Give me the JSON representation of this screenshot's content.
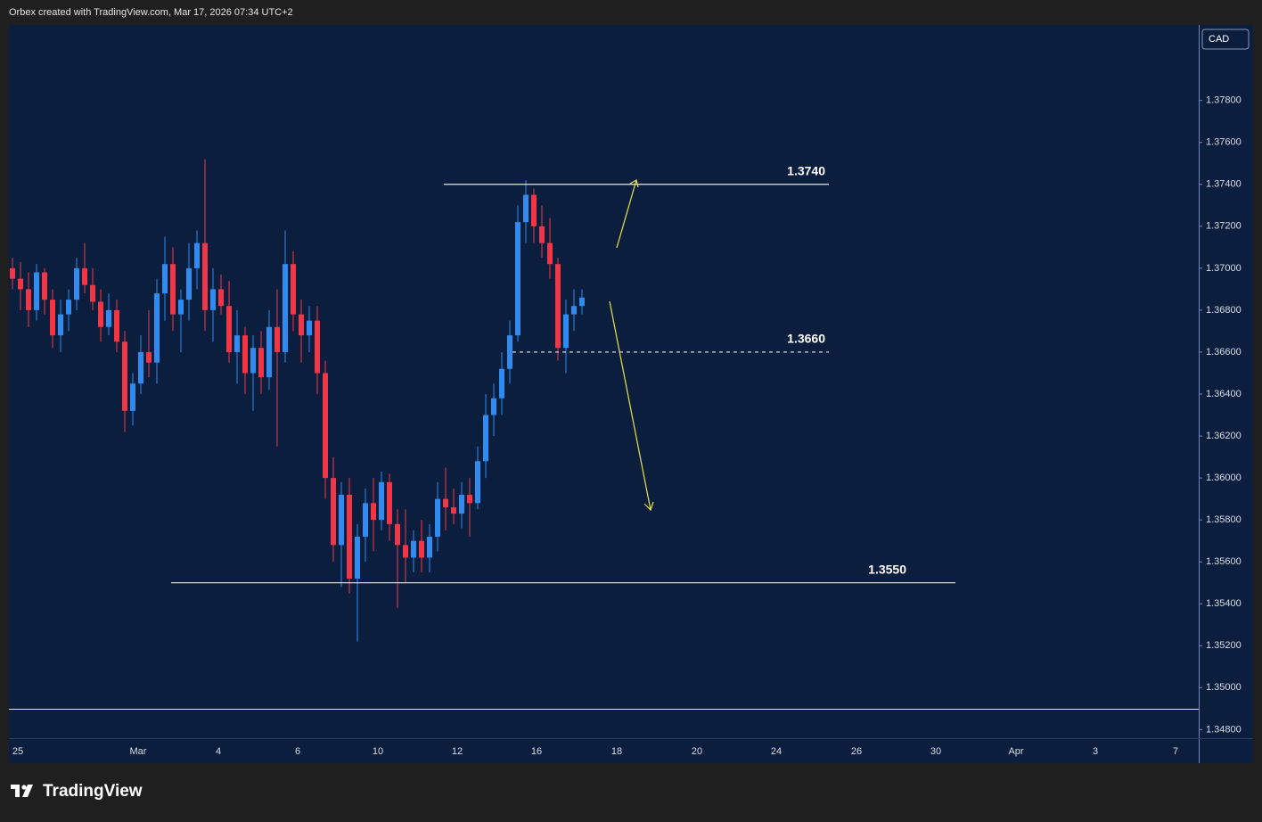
{
  "header": "Orbex created with TradingView.com, Mar 17, 2026 07:34 UTC+2",
  "logo": "TradingView",
  "chart_data": {
    "type": "candlestick",
    "currency": "CAD",
    "up_color": "#2f8bf0",
    "down_color": "#f23645",
    "ylim": [
      1.3464,
      1.3816
    ],
    "yticks": [
      {
        "value": 1.378,
        "label": "1.37800"
      },
      {
        "value": 1.376,
        "label": "1.37600"
      },
      {
        "value": 1.374,
        "label": "1.37400"
      },
      {
        "value": 1.372,
        "label": "1.37200"
      },
      {
        "value": 1.37,
        "label": "1.37000"
      },
      {
        "value": 1.368,
        "label": "1.36800"
      },
      {
        "value": 1.366,
        "label": "1.36600"
      },
      {
        "value": 1.364,
        "label": "1.36400"
      },
      {
        "value": 1.362,
        "label": "1.36200"
      },
      {
        "value": 1.36,
        "label": "1.36000"
      },
      {
        "value": 1.358,
        "label": "1.35800"
      },
      {
        "value": 1.356,
        "label": "1.35600"
      },
      {
        "value": 1.354,
        "label": "1.35400"
      },
      {
        "value": 1.352,
        "label": "1.35200"
      },
      {
        "value": 1.35,
        "label": "1.35000"
      },
      {
        "value": 1.348,
        "label": "1.34800"
      }
    ],
    "x_tick_labels": [
      "25",
      "Mar",
      "4",
      "6",
      "10",
      "12",
      "16",
      "18",
      "20",
      "24",
      "26",
      "30",
      "Apr",
      "3",
      "7"
    ],
    "open": [
      1.37,
      1.3695,
      1.369,
      1.368,
      1.3698,
      1.3685,
      1.3668,
      1.3678,
      1.3685,
      1.37,
      1.3692,
      1.3684,
      1.3672,
      1.368,
      1.3665,
      1.3632,
      1.3645,
      1.366,
      1.3655,
      1.3688,
      1.3702,
      1.3678,
      1.3685,
      1.37,
      1.3712,
      1.368,
      1.369,
      1.3682,
      1.366,
      1.3668,
      1.365,
      1.3662,
      1.3648,
      1.3672,
      1.366,
      1.3702,
      1.3678,
      1.3668,
      1.3675,
      1.365,
      1.36,
      1.3568,
      1.3592,
      1.3552,
      1.3572,
      1.3588,
      1.358,
      1.3598,
      1.3578,
      1.3568,
      1.3562,
      1.357,
      1.3562,
      1.3572,
      1.359,
      1.3586,
      1.3583,
      1.3592,
      1.3588,
      1.3608,
      1.363,
      1.3638,
      1.3652,
      1.3668,
      1.3722,
      1.3735,
      1.372,
      1.3712,
      1.3702,
      1.3662,
      1.3678,
      1.3682
    ],
    "high": [
      1.3705,
      1.3703,
      1.3698,
      1.3702,
      1.37,
      1.369,
      1.3685,
      1.369,
      1.3705,
      1.3712,
      1.37,
      1.369,
      1.3688,
      1.3685,
      1.367,
      1.365,
      1.3668,
      1.368,
      1.3695,
      1.3715,
      1.371,
      1.369,
      1.3712,
      1.3718,
      1.3752,
      1.37,
      1.3697,
      1.3694,
      1.368,
      1.3672,
      1.3668,
      1.367,
      1.368,
      1.369,
      1.3718,
      1.3708,
      1.3685,
      1.3682,
      1.3682,
      1.3656,
      1.361,
      1.3598,
      1.36,
      1.3578,
      1.3595,
      1.36,
      1.3603,
      1.3602,
      1.3585,
      1.3585,
      1.3575,
      1.358,
      1.3578,
      1.3598,
      1.3605,
      1.3595,
      1.3598,
      1.36,
      1.3615,
      1.364,
      1.3645,
      1.366,
      1.3675,
      1.373,
      1.3742,
      1.3738,
      1.373,
      1.3724,
      1.3705,
      1.3685,
      1.369,
      1.369
    ],
    "low": [
      1.369,
      1.368,
      1.3672,
      1.3675,
      1.3678,
      1.3662,
      1.366,
      1.367,
      1.368,
      1.3688,
      1.368,
      1.3665,
      1.3668,
      1.366,
      1.3622,
      1.3625,
      1.364,
      1.3648,
      1.3645,
      1.3675,
      1.367,
      1.366,
      1.3675,
      1.369,
      1.367,
      1.3665,
      1.3678,
      1.3655,
      1.3645,
      1.364,
      1.3632,
      1.364,
      1.3642,
      1.3615,
      1.3655,
      1.367,
      1.3655,
      1.366,
      1.364,
      1.359,
      1.356,
      1.3548,
      1.3545,
      1.3522,
      1.356,
      1.3565,
      1.3575,
      1.357,
      1.3538,
      1.355,
      1.3555,
      1.3555,
      1.3555,
      1.3565,
      1.3575,
      1.3578,
      1.3576,
      1.3572,
      1.3585,
      1.36,
      1.362,
      1.363,
      1.3645,
      1.3665,
      1.3712,
      1.3712,
      1.3705,
      1.3695,
      1.3656,
      1.365,
      1.367,
      1.3678
    ],
    "close": [
      1.3695,
      1.369,
      1.368,
      1.3698,
      1.3685,
      1.3668,
      1.3678,
      1.3685,
      1.37,
      1.3692,
      1.3684,
      1.3672,
      1.368,
      1.3665,
      1.3632,
      1.3645,
      1.366,
      1.3655,
      1.3688,
      1.3702,
      1.3678,
      1.3685,
      1.37,
      1.3712,
      1.368,
      1.369,
      1.3682,
      1.366,
      1.3668,
      1.365,
      1.3662,
      1.3648,
      1.3672,
      1.366,
      1.3702,
      1.3678,
      1.3668,
      1.3675,
      1.365,
      1.36,
      1.3568,
      1.3592,
      1.3552,
      1.3572,
      1.3588,
      1.358,
      1.3598,
      1.3578,
      1.3568,
      1.3562,
      1.357,
      1.3562,
      1.3572,
      1.359,
      1.3586,
      1.3583,
      1.3592,
      1.3588,
      1.3608,
      1.363,
      1.3638,
      1.3652,
      1.3668,
      1.3722,
      1.3735,
      1.372,
      1.3712,
      1.3702,
      1.3662,
      1.3678,
      1.3682,
      1.3686
    ],
    "levels": [
      {
        "value": 1.374,
        "label": "1.3740"
      },
      {
        "value": 1.366,
        "label": "1.3660"
      },
      {
        "value": 1.355,
        "label": "1.3550"
      }
    ]
  }
}
